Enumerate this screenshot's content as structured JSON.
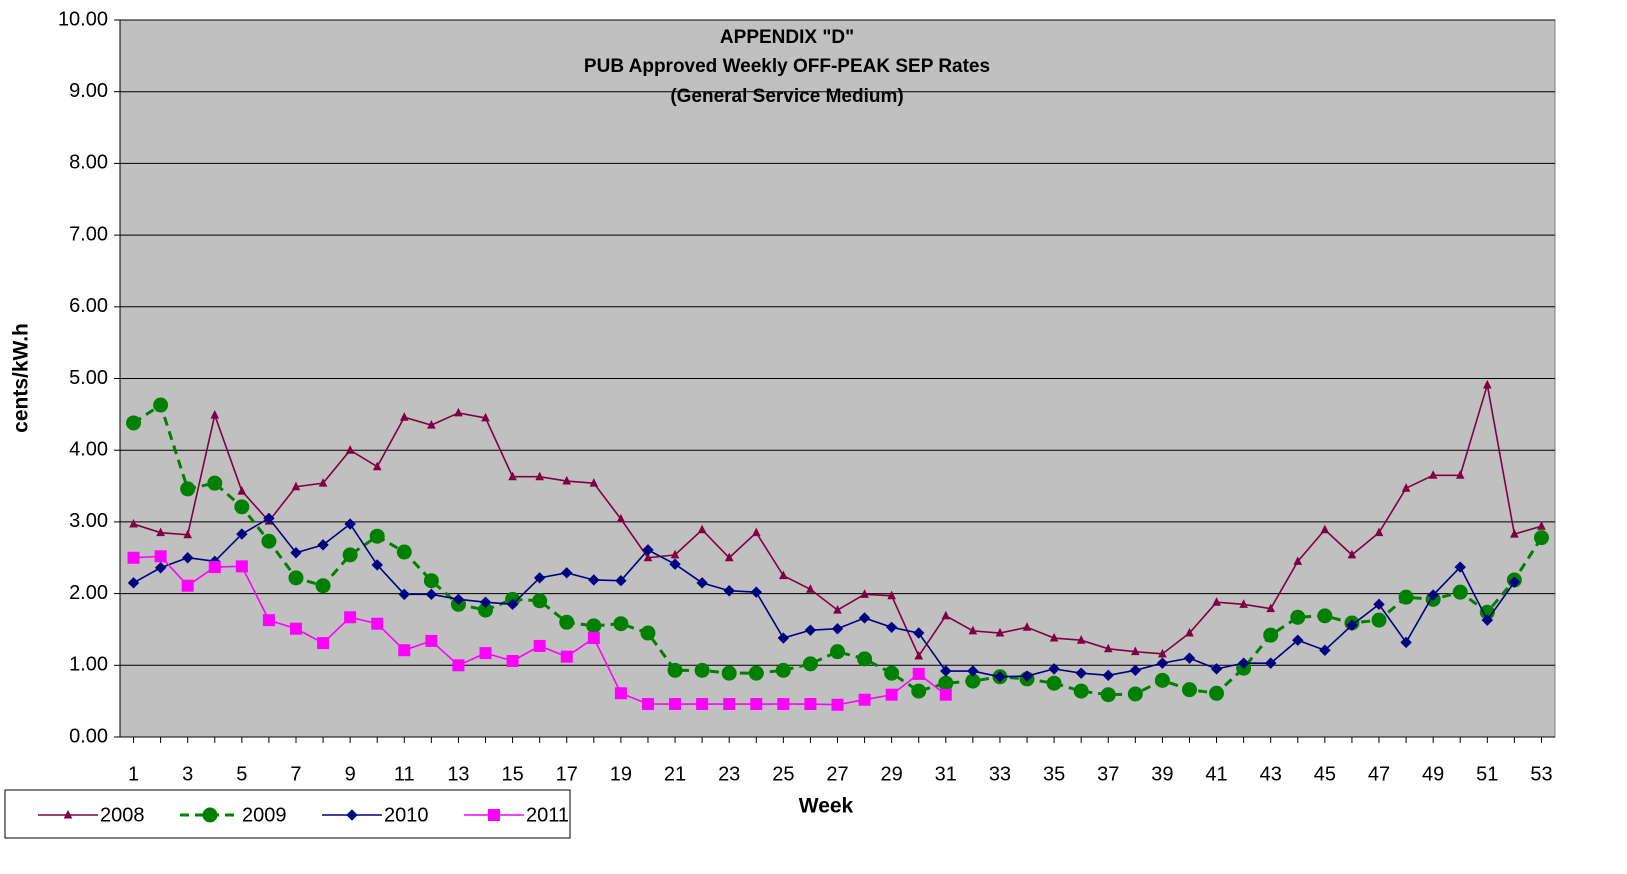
{
  "chart_data": {
    "type": "line",
    "title": [
      "APPENDIX \"D\"",
      "PUB Approved Weekly OFF-PEAK SEP Rates",
      "(General Service Medium)"
    ],
    "x_label": "Week",
    "y_label": "cents/kW.h",
    "x": [
      1,
      2,
      3,
      4,
      5,
      6,
      7,
      8,
      9,
      10,
      11,
      12,
      13,
      14,
      15,
      16,
      17,
      18,
      19,
      20,
      21,
      22,
      23,
      24,
      25,
      26,
      27,
      28,
      29,
      30,
      31,
      32,
      33,
      34,
      35,
      36,
      37,
      38,
      39,
      40,
      41,
      42,
      43,
      44,
      45,
      46,
      47,
      48,
      49,
      50,
      51,
      52,
      53
    ],
    "xlim": [
      0.5,
      53.5
    ],
    "xticks": [
      1,
      3,
      5,
      7,
      9,
      11,
      13,
      15,
      17,
      19,
      21,
      23,
      25,
      27,
      29,
      31,
      33,
      35,
      37,
      39,
      41,
      43,
      45,
      47,
      49,
      51,
      53
    ],
    "ylim": [
      0,
      10
    ],
    "yticks": [
      {
        "value": 0,
        "label": "0.00"
      },
      {
        "value": 1,
        "label": "1.00"
      },
      {
        "value": 2,
        "label": "2.00"
      },
      {
        "value": 3,
        "label": "3.00"
      },
      {
        "value": 4,
        "label": "4.00"
      },
      {
        "value": 5,
        "label": "5.00"
      },
      {
        "value": 6,
        "label": "6.00"
      },
      {
        "value": 7,
        "label": "7.00"
      },
      {
        "value": 8,
        "label": "8.00"
      },
      {
        "value": 9,
        "label": "9.00"
      },
      {
        "value": 10,
        "label": "10.00"
      }
    ],
    "grid": true,
    "legend": "bottom-left",
    "series": [
      {
        "name": "2008",
        "color": "#800040",
        "marker": "triangle",
        "dashed": false,
        "values": [
          2.97,
          2.85,
          2.82,
          4.49,
          3.43,
          3.01,
          3.49,
          3.54,
          4.0,
          3.77,
          4.46,
          4.35,
          4.52,
          4.45,
          3.63,
          3.63,
          3.57,
          3.54,
          3.04,
          2.5,
          2.54,
          2.89,
          2.5,
          2.85,
          2.25,
          2.06,
          1.77,
          1.99,
          1.97,
          1.13,
          1.69,
          1.48,
          1.45,
          1.53,
          1.38,
          1.35,
          1.23,
          1.19,
          1.16,
          1.45,
          1.88,
          1.85,
          1.79,
          2.45,
          2.89,
          2.54,
          2.85,
          3.47,
          3.65,
          3.65,
          4.91,
          2.83,
          2.94
        ]
      },
      {
        "name": "2009",
        "color": "#008000",
        "marker": "circle",
        "dashed": true,
        "values": [
          4.38,
          4.63,
          3.46,
          3.54,
          3.21,
          2.73,
          2.22,
          2.11,
          2.54,
          2.8,
          2.58,
          2.18,
          1.85,
          1.77,
          1.92,
          1.9,
          1.6,
          1.55,
          1.58,
          1.45,
          0.93,
          0.93,
          0.89,
          0.89,
          0.93,
          1.02,
          1.19,
          1.09,
          0.89,
          0.64,
          0.75,
          0.78,
          0.84,
          0.81,
          0.75,
          0.64,
          0.59,
          0.6,
          0.79,
          0.66,
          0.61,
          0.96,
          1.42,
          1.67,
          1.69,
          1.59,
          1.63,
          1.95,
          1.92,
          2.02,
          1.74,
          2.19,
          2.78
        ]
      },
      {
        "name": "2010",
        "color": "#000080",
        "marker": "diamond",
        "dashed": false,
        "values": [
          2.15,
          2.36,
          2.5,
          2.45,
          2.83,
          3.05,
          2.57,
          2.68,
          2.97,
          2.4,
          1.99,
          1.99,
          1.92,
          1.88,
          1.85,
          2.22,
          2.29,
          2.19,
          2.18,
          2.61,
          2.41,
          2.15,
          2.04,
          2.02,
          1.38,
          1.49,
          1.51,
          1.66,
          1.53,
          1.45,
          0.92,
          0.92,
          0.84,
          0.85,
          0.95,
          0.89,
          0.86,
          0.93,
          1.03,
          1.1,
          0.95,
          1.03,
          1.03,
          1.35,
          1.21,
          1.56,
          1.85,
          1.32,
          1.98,
          2.37,
          1.63,
          2.16,
          null
        ]
      },
      {
        "name": "2011",
        "color": "#ff00ff",
        "marker": "square",
        "dashed": false,
        "values": [
          2.5,
          2.52,
          2.11,
          2.37,
          2.38,
          1.63,
          1.51,
          1.31,
          1.67,
          1.58,
          1.21,
          1.34,
          1.0,
          1.17,
          1.06,
          1.27,
          1.12,
          1.38,
          0.61,
          0.46,
          0.46,
          0.46,
          0.46,
          0.46,
          0.46,
          0.46,
          0.45,
          0.52,
          0.59,
          0.88,
          0.59,
          null,
          null,
          null,
          null,
          null,
          null,
          null,
          null,
          null,
          null,
          null,
          null,
          null,
          null,
          null,
          null,
          null,
          null,
          null,
          null,
          null,
          null
        ]
      }
    ]
  }
}
